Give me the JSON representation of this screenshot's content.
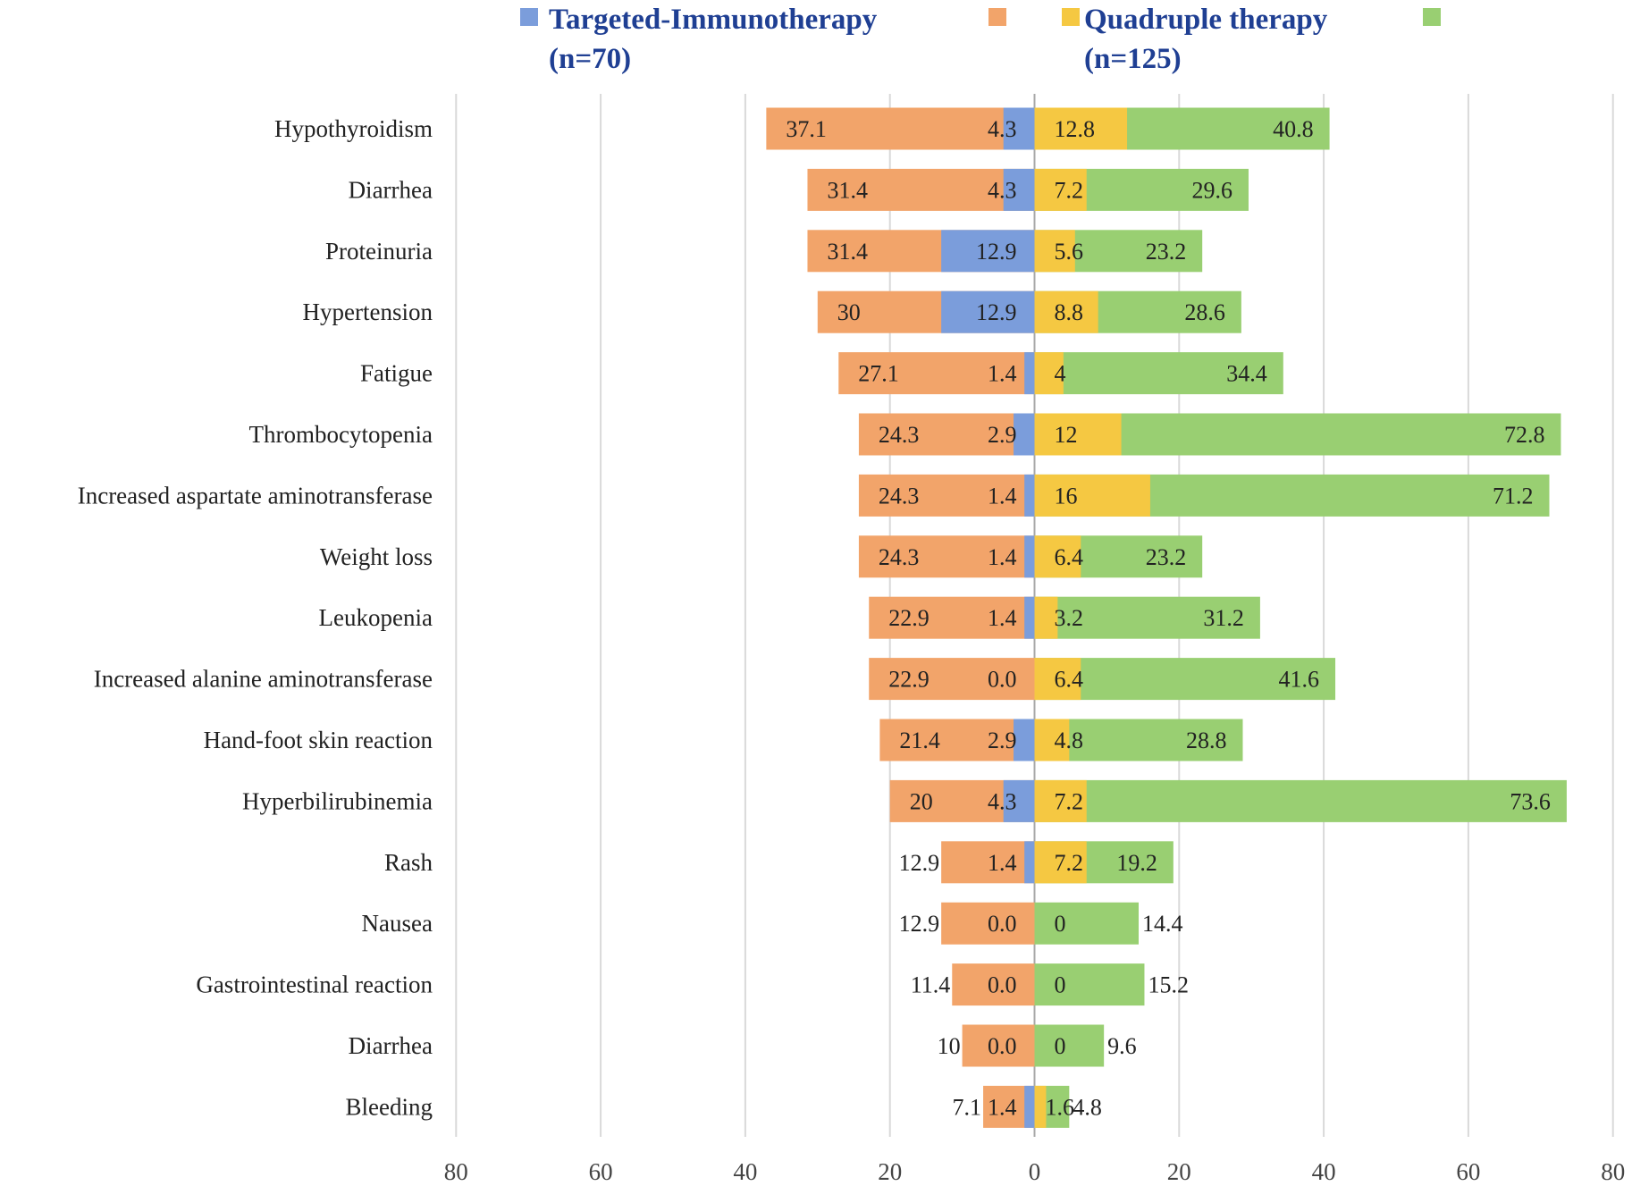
{
  "chart_data": {
    "type": "bar",
    "orientation": "horizontal-diverging",
    "legend": {
      "position": "top",
      "entries": [
        {
          "line1": "Targeted-Immunotherapy",
          "line2": "(n=70)",
          "color": "#7b9ddb"
        },
        {
          "line1": "",
          "line2": "",
          "color": "#f2a46a"
        },
        {
          "line1": "Quadruple therapy",
          "line2": "(n=125)",
          "color": "#f5c842"
        },
        {
          "line1": "",
          "line2": "",
          "color": "#99cf72"
        }
      ]
    },
    "xlim": [
      -80,
      80
    ],
    "ticks": [
      "80",
      "60",
      "40",
      "20",
      "0",
      "20",
      "40",
      "60",
      "80"
    ],
    "grid": true,
    "categories": [
      "Hypothyroidism",
      "Diarrhea",
      "Proteinuria",
      "Hypertension",
      "Fatigue",
      "Thrombocytopenia",
      "Increased aspartate aminotransferase",
      "Weight loss",
      "Leukopenia",
      "Increased alanine aminotransferase",
      "Hand-foot skin reaction",
      "Hyperbilirubinemia",
      "Rash",
      "Nausea",
      "Gastrointestinal reaction",
      "Diarrhea",
      "Bleeding"
    ],
    "series": [
      {
        "name": "Targeted-Immunotherapy total (orange)",
        "side": "left",
        "color": "#f2a46a",
        "values": [
          "37.1",
          "31.4",
          "31.4",
          "30",
          "27.1",
          "24.3",
          "24.3",
          "24.3",
          "22.9",
          "22.9",
          "21.4",
          "20",
          "12.9",
          "12.9",
          "11.4",
          "10",
          "7.1"
        ]
      },
      {
        "name": "Targeted-Immunotherapy subset (blue)",
        "side": "left",
        "color": "#7b9ddb",
        "values": [
          "4.3",
          "4.3",
          "12.9",
          "12.9",
          "1.4",
          "2.9",
          "1.4",
          "1.4",
          "1.4",
          "0.0",
          "2.9",
          "4.3",
          "1.4",
          "0.0",
          "0.0",
          "0.0",
          "1.4"
        ]
      },
      {
        "name": "Quadruple therapy subset (yellow)",
        "side": "right",
        "color": "#f5c842",
        "values": [
          "12.8",
          "7.2",
          "5.6",
          "8.8",
          "4",
          "12",
          "16",
          "6.4",
          "3.2",
          "6.4",
          "4.8",
          "7.2",
          "7.2",
          "0",
          "0",
          "0",
          "1.6"
        ]
      },
      {
        "name": "Quadruple therapy total (green)",
        "side": "right",
        "color": "#99cf72",
        "values": [
          "40.8",
          "29.6",
          "23.2",
          "28.6",
          "34.4",
          "72.8",
          "71.2",
          "23.2",
          "31.2",
          "41.6",
          "28.8",
          "73.6",
          "19.2",
          "14.4",
          "15.2",
          "9.6",
          "4.8"
        ]
      }
    ]
  }
}
